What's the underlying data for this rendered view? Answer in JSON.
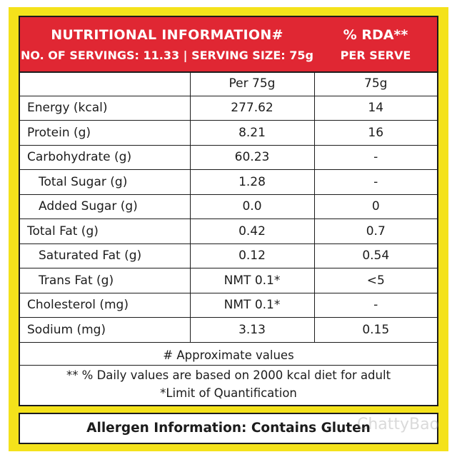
{
  "header": {
    "title": "NUTRITIONAL INFORMATION#",
    "servings": "NO. OF SERVINGS: 11.33 | SERVING SIZE:  75g",
    "rda_title": "% RDA**",
    "rda_sub": "PER  SERVE"
  },
  "columns": {
    "per": "Per 75g",
    "rda": "75g"
  },
  "rows": [
    {
      "name": "Energy (kcal)",
      "per": "277.62",
      "rda": "14",
      "sub": false
    },
    {
      "name": "Protein (g)",
      "per": "8.21",
      "rda": "16",
      "sub": false
    },
    {
      "name": "Carbohydrate (g)",
      "per": "60.23",
      "rda": "-",
      "sub": false
    },
    {
      "name": "Total Sugar (g)",
      "per": "1.28",
      "rda": "-",
      "sub": true
    },
    {
      "name": "Added Sugar (g)",
      "per": "0.0",
      "rda": "0",
      "sub": true
    },
    {
      "name": "Total Fat (g)",
      "per": "0.42",
      "rda": "0.7",
      "sub": false
    },
    {
      "name": "Saturated Fat (g)",
      "per": "0.12",
      "rda": "0.54",
      "sub": true
    },
    {
      "name": "Trans Fat (g)",
      "per": "NMT 0.1*",
      "rda": "<5",
      "sub": true
    },
    {
      "name": "Cholesterol (mg)",
      "per": "NMT 0.1*",
      "rda": "-",
      "sub": false
    },
    {
      "name": "Sodium (mg)",
      "per": "3.13",
      "rda": "0.15",
      "sub": false
    }
  ],
  "footer": {
    "approx": "# Approximate values",
    "note1": "** % Daily values are based on 2000 kcal diet for adult",
    "note2": "*Limit of Quantification"
  },
  "allergen": "Allergen Information: Contains Gluten",
  "watermark": "ChattyBao",
  "colors": {
    "header_red": "#e02733",
    "border_yellow": "#f4e21b",
    "text": "#1c1c1c"
  }
}
